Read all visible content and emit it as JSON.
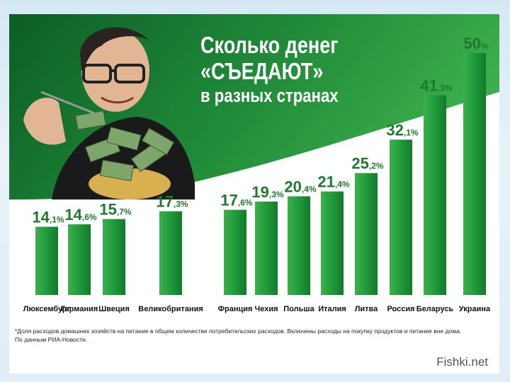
{
  "title": {
    "line1": "Сколько денег",
    "line2": "«СЪЕДАЮТ»",
    "line3": "в разных странах"
  },
  "chart_data": {
    "type": "bar",
    "title": "Сколько денег «СЪЕДАЮТ» в разных странах",
    "categories": [
      "Люксембург",
      "Германия",
      "Швеция",
      "Великобритания",
      "Франция",
      "Чехия",
      "Польша",
      "Италия",
      "Литва",
      "Россия",
      "Беларусь",
      "Украина"
    ],
    "values": [
      14.1,
      14.6,
      15.7,
      17.3,
      17.6,
      19.3,
      20.4,
      21.4,
      25.2,
      32.1,
      41.3,
      50
    ],
    "labels": [
      {
        "int": "14",
        "dec": ",1%"
      },
      {
        "int": "14",
        "dec": ",6%"
      },
      {
        "int": "15",
        "dec": ",7%"
      },
      {
        "int": "17",
        "dec": ",3%"
      },
      {
        "int": "17",
        "dec": ",6%"
      },
      {
        "int": "19",
        "dec": ",3%"
      },
      {
        "int": "20",
        "dec": ",4%"
      },
      {
        "int": "21",
        "dec": ",4%"
      },
      {
        "int": "25",
        "dec": ",2%"
      },
      {
        "int": "32",
        "dec": ",1%"
      },
      {
        "int": "41",
        "dec": ",3%"
      },
      {
        "int": "50",
        "dec": "%"
      }
    ],
    "ylim": [
      0,
      50
    ],
    "grid": false,
    "bar_color": "#1e9a3a"
  },
  "footnote": {
    "line1": "*Доля расходов домашних хозяйств на питание в общем количестве  потребительских расходов. Включены расходы на покупку продуктов и питание вне дома.",
    "line2": "По данным РИА-Новости."
  },
  "source": "Fishki.net",
  "colors": {
    "banner_dark": "#0f6e2e",
    "banner_light": "#3fb04e",
    "bar": "#1e9a3a"
  }
}
